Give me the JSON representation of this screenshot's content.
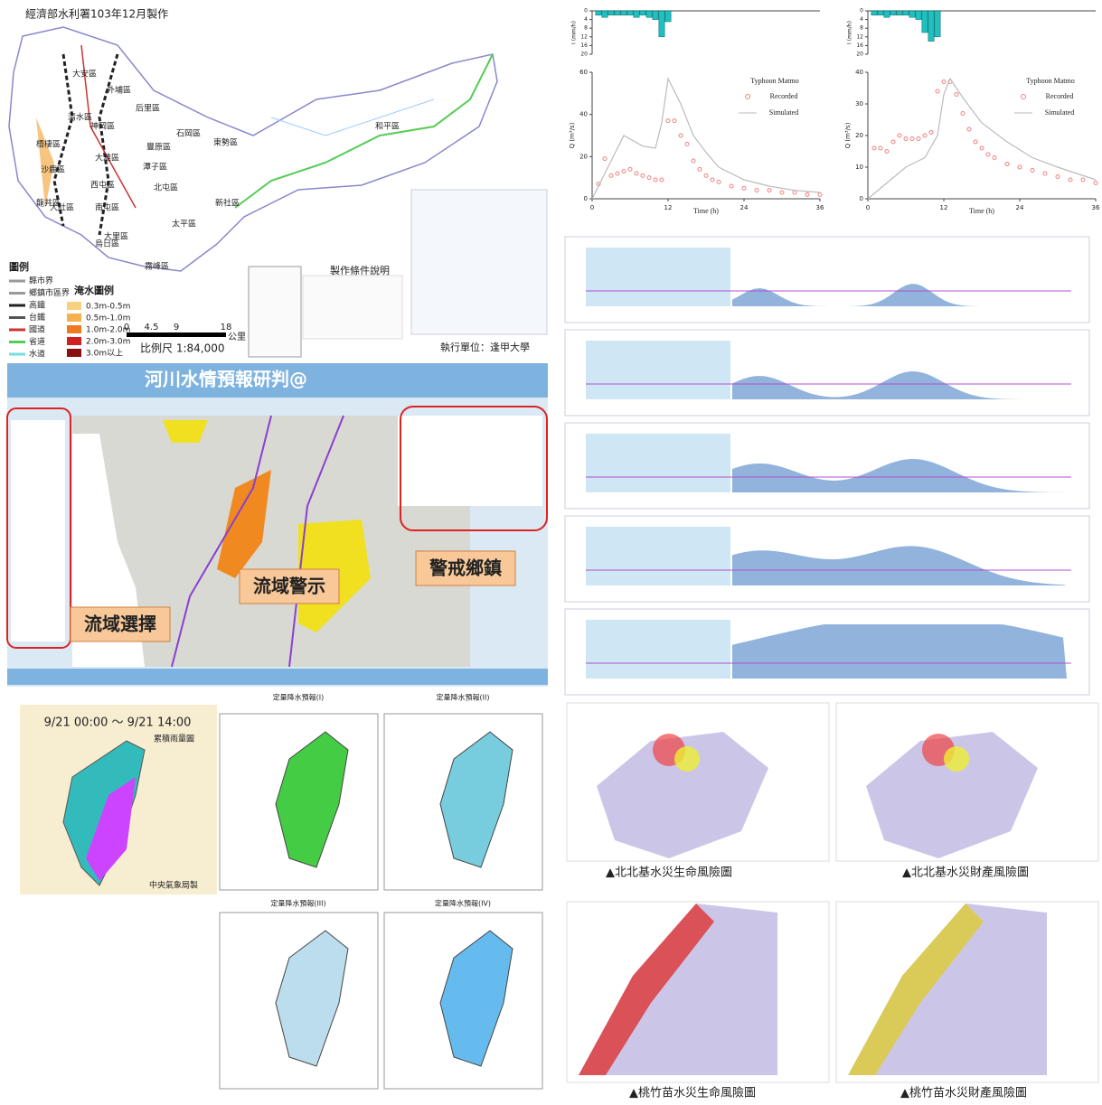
{
  "map_panel": {
    "credit": "經濟部水利署103年12月製作",
    "districts": [
      "大安區",
      "外埔區",
      "后里區",
      "石岡區",
      "東勢區",
      "和平區",
      "豐原區",
      "潭子區",
      "神岡區",
      "大雅區",
      "清水區",
      "梧棲區",
      "沙鹿區",
      "龍井區",
      "西屯區",
      "北屯區",
      "新社區",
      "南屯區",
      "大肚區",
      "太平區",
      "大里區",
      "烏日區",
      "霧峰區"
    ],
    "legend_title": "圖例",
    "legend_items": [
      "縣市界",
      "鄉鎮市區界",
      "高鐵",
      "台鐵",
      "國道",
      "省道",
      "水道"
    ],
    "flood_title": "淹水圖例",
    "flood_items": [
      "0.3m-0.5m",
      "0.5m-1.0m",
      "1.0m-2.0m",
      "2.0m-3.0m",
      "3.0m以上"
    ],
    "scale_ticks": [
      0,
      4.5,
      9,
      18
    ],
    "scale_unit": "公里",
    "scale_ratio": "比例尺 1:84,000",
    "conditions_title": "製作條件說明",
    "executor": "執行單位：逢甲大學"
  },
  "web_panel": {
    "title": "河川水情預報研判@",
    "callouts": [
      "流域警示",
      "警戒鄉鎮",
      "流域選擇"
    ]
  },
  "rain_panel": {
    "period": "9/21 00:00 ～ 9/21 14:00",
    "map_title": "累積雨量圖",
    "agency": "中央氣象局製",
    "qpf_titles": [
      "定量降水預報(I)",
      "定量降水預報(II)",
      "定量降水預報(III)",
      "定量降水預報(IV)"
    ]
  },
  "hydrographs": [
    {
      "legend_title": "Typhoon Matmo",
      "xlabel": "Time (h)",
      "ylabel": "Q (m³/s)",
      "xlim": [
        0,
        36
      ],
      "xticks": [
        0,
        12,
        24,
        36
      ],
      "ylim": [
        0,
        60
      ],
      "yticks": [
        0,
        20,
        40,
        60
      ],
      "series": [
        {
          "name": "Recorded",
          "color": "#f08080",
          "x": [
            1,
            2,
            3,
            4,
            5,
            6,
            7,
            8,
            9,
            10,
            11,
            12,
            13,
            14,
            15,
            16,
            17,
            18,
            19,
            20,
            22,
            24,
            26,
            28,
            30,
            32,
            34,
            36
          ],
          "values": [
            7,
            19,
            11,
            12,
            13,
            14,
            12,
            11,
            10,
            9,
            9,
            37,
            37,
            30,
            26,
            18,
            14,
            11,
            9,
            8,
            6,
            5,
            4,
            4,
            3,
            3,
            2,
            2
          ]
        },
        {
          "name": "Simulated",
          "color": "#bbbbbb",
          "x": [
            0,
            2,
            5,
            8,
            10,
            11,
            12,
            14,
            16,
            18,
            20,
            24,
            28,
            32,
            36
          ],
          "values": [
            0,
            12,
            30,
            25,
            24,
            36,
            57,
            45,
            30,
            22,
            15,
            9,
            6,
            4,
            3
          ]
        }
      ],
      "rain": {
        "ylabel": "I (mm/h)",
        "color": "#20c0c0",
        "ylim": [
          0,
          20
        ],
        "yticks": [
          0,
          4,
          8,
          12,
          16,
          20
        ],
        "x": [
          1,
          2,
          3,
          4,
          5,
          6,
          7,
          8,
          9,
          10,
          11,
          12
        ],
        "values": [
          2,
          3,
          2,
          2,
          2,
          2,
          3,
          2,
          3,
          4,
          12,
          5
        ]
      }
    },
    {
      "legend_title": "Typhoon Matmo",
      "xlabel": "Time (h)",
      "ylabel": "Q (m³/s)",
      "xlim": [
        0,
        36
      ],
      "xticks": [
        0,
        12,
        24,
        36
      ],
      "ylim": [
        0,
        40
      ],
      "yticks": [
        0,
        10,
        20,
        30,
        40
      ],
      "series": [
        {
          "name": "Recorded",
          "color": "#f08080",
          "x": [
            1,
            2,
            3,
            4,
            5,
            6,
            7,
            8,
            9,
            10,
            11,
            12,
            13,
            14,
            15,
            16,
            17,
            18,
            19,
            20,
            22,
            24,
            26,
            28,
            30,
            32,
            34,
            36
          ],
          "values": [
            16,
            16,
            15,
            18,
            20,
            19,
            19,
            19,
            20,
            21,
            34,
            37,
            37,
            33,
            27,
            22,
            18,
            16,
            14,
            13,
            11,
            10,
            9,
            8,
            7,
            6,
            6,
            5
          ]
        },
        {
          "name": "Simulated",
          "color": "#bbbbbb",
          "x": [
            0,
            3,
            6,
            9,
            11,
            12,
            13,
            15,
            18,
            22,
            26,
            30,
            36
          ],
          "values": [
            0,
            5,
            10,
            13,
            20,
            33,
            38,
            32,
            24,
            18,
            13,
            10,
            6
          ]
        }
      ],
      "rain": {
        "ylabel": "I (mm/h)",
        "color": "#20c0c0",
        "ylim": [
          0,
          20
        ],
        "yticks": [
          0,
          4,
          8,
          12,
          16,
          20
        ],
        "x": [
          1,
          2,
          3,
          4,
          5,
          6,
          7,
          8,
          9,
          10,
          11
        ],
        "values": [
          2,
          2,
          3,
          2,
          2,
          2,
          3,
          4,
          10,
          14,
          12
        ]
      }
    }
  ],
  "risk_maps": {
    "captions": [
      "▲北北基水災生命風險圖",
      "▲北北基水災財產風險圖",
      "▲桃竹苗水災生命風險圖",
      "▲桃竹苗水災財產風險圖"
    ]
  }
}
